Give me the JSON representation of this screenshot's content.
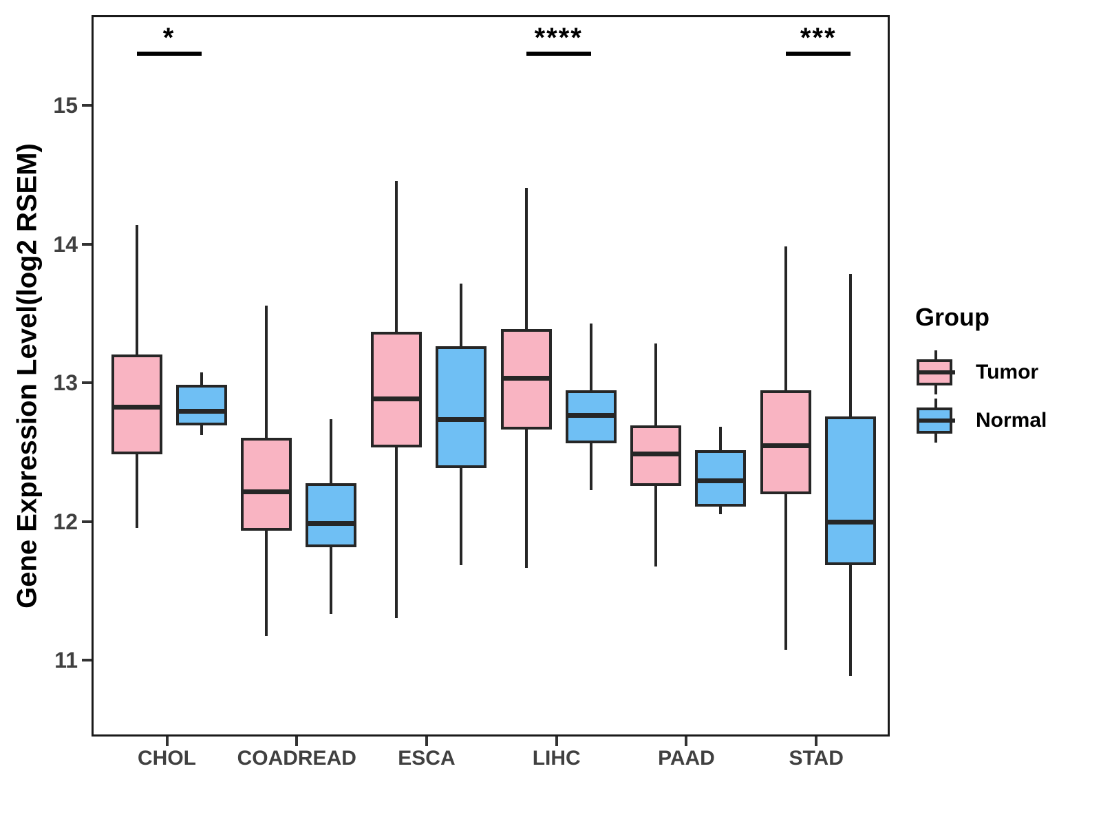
{
  "chart_data": {
    "type": "grouped_boxplot",
    "title": "",
    "xlabel": "",
    "ylabel": "Gene Expression Level(log2 RSEM)",
    "ylim": [
      10.45,
      15.65
    ],
    "yticks": [
      11,
      12,
      13,
      14,
      15
    ],
    "grid": "off",
    "categories": [
      "CHOL",
      "COADREAD",
      "ESCA",
      "LIHC",
      "PAAD",
      "STAD"
    ],
    "legend": {
      "title": "Group",
      "position": "right",
      "entries": [
        {
          "label": "Tumor",
          "color": "#F9B4C2"
        },
        {
          "label": "Normal",
          "color": "#6FBFF4"
        }
      ]
    },
    "significance": [
      {
        "category": "CHOL",
        "label": "*"
      },
      {
        "category": "LIHC",
        "label": "****"
      },
      {
        "category": "STAD",
        "label": "***"
      }
    ],
    "series": [
      {
        "name": "Tumor",
        "color": "#F9B4C2",
        "boxes": [
          {
            "category": "CHOL",
            "whisker_low": 11.97,
            "q1": 12.5,
            "median": 12.84,
            "q3": 13.22,
            "whisker_high": 14.15
          },
          {
            "category": "COADREAD",
            "whisker_low": 11.19,
            "q1": 11.95,
            "median": 12.23,
            "q3": 12.62,
            "whisker_high": 13.57
          },
          {
            "category": "ESCA",
            "whisker_low": 11.32,
            "q1": 12.55,
            "median": 12.9,
            "q3": 13.38,
            "whisker_high": 14.47
          },
          {
            "category": "LIHC",
            "whisker_low": 11.68,
            "q1": 12.68,
            "median": 13.05,
            "q3": 13.4,
            "whisker_high": 14.42
          },
          {
            "category": "PAAD",
            "whisker_low": 11.69,
            "q1": 12.27,
            "median": 12.5,
            "q3": 12.71,
            "whisker_high": 13.3
          },
          {
            "category": "STAD",
            "whisker_low": 11.09,
            "q1": 12.21,
            "median": 12.56,
            "q3": 12.96,
            "whisker_high": 14.0
          }
        ]
      },
      {
        "name": "Normal",
        "color": "#6FBFF4",
        "boxes": [
          {
            "category": "CHOL",
            "whisker_low": 12.64,
            "q1": 12.71,
            "median": 12.81,
            "q3": 13.0,
            "whisker_high": 13.09
          },
          {
            "category": "COADREAD",
            "whisker_low": 11.35,
            "q1": 11.83,
            "median": 12.0,
            "q3": 12.29,
            "whisker_high": 12.75
          },
          {
            "category": "ESCA",
            "whisker_low": 11.7,
            "q1": 12.4,
            "median": 12.75,
            "q3": 13.28,
            "whisker_high": 13.73
          },
          {
            "category": "LIHC",
            "whisker_low": 12.24,
            "q1": 12.58,
            "median": 12.78,
            "q3": 12.96,
            "whisker_high": 13.44
          },
          {
            "category": "PAAD",
            "whisker_low": 12.07,
            "q1": 12.12,
            "median": 12.31,
            "q3": 12.53,
            "whisker_high": 12.7
          },
          {
            "category": "STAD",
            "whisker_low": 10.9,
            "q1": 11.7,
            "median": 12.01,
            "q3": 12.77,
            "whisker_high": 13.8
          }
        ]
      }
    ]
  }
}
